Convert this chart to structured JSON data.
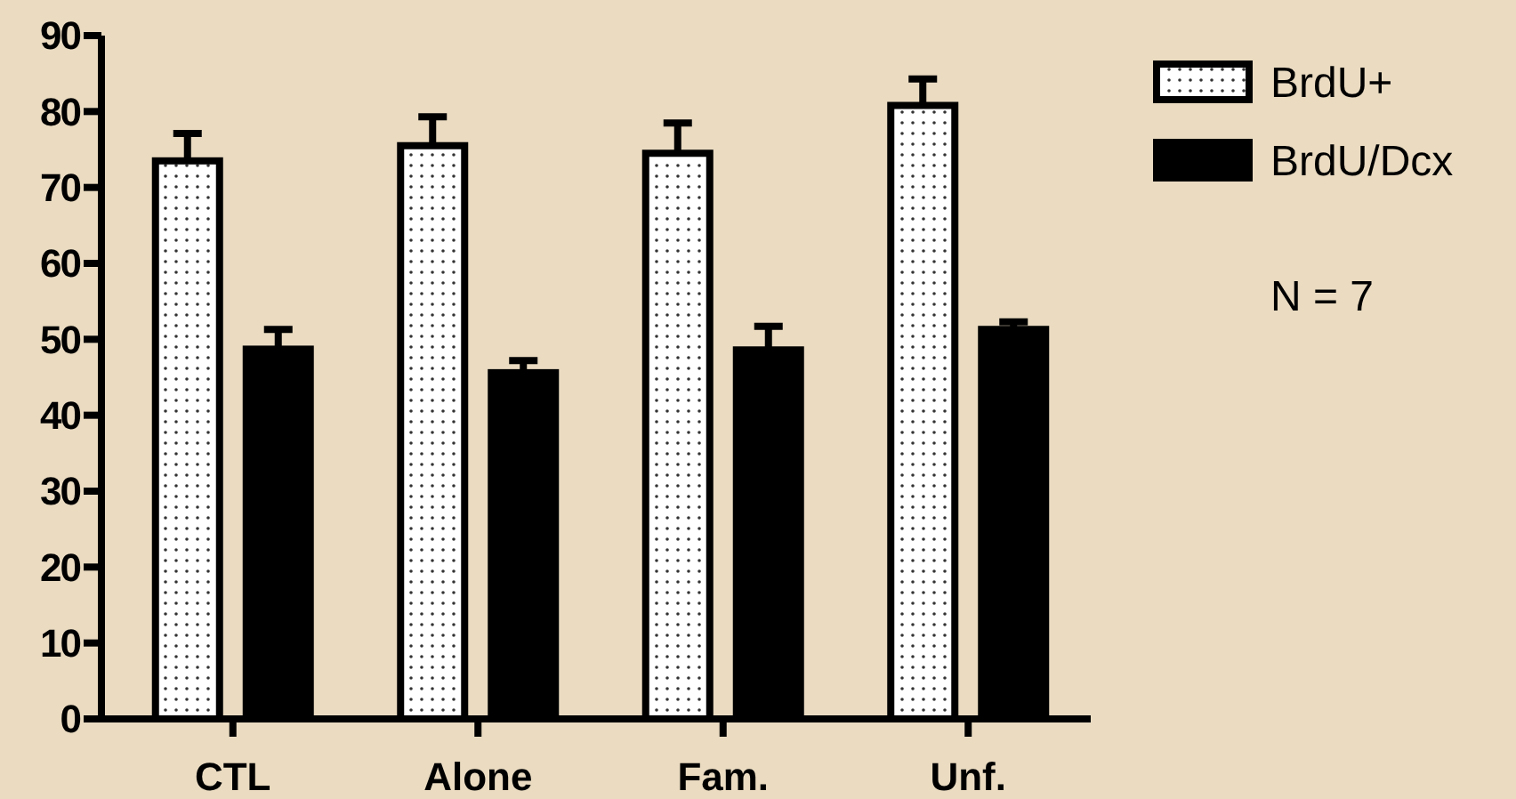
{
  "chart_data": {
    "type": "bar",
    "categories": [
      "CTL",
      "Alone",
      "Fam.",
      "Unf."
    ],
    "series": [
      {
        "name": "BrdU+",
        "color": "#ffffff",
        "values": [
          73.5,
          75.5,
          74.5,
          80.8
        ],
        "errors": [
          3.6,
          3.8,
          4,
          3.5
        ]
      },
      {
        "name": "BrdU/Dcx",
        "color": "#000000",
        "values": [
          48.7,
          45.6,
          48.6,
          51.3
        ],
        "errors": [
          2.6,
          1.6,
          3.1,
          1
        ]
      }
    ],
    "ylim": [
      0,
      90
    ],
    "yticks": [
      0,
      10,
      20,
      30,
      40,
      50,
      60,
      70,
      80,
      90
    ],
    "grid": false,
    "legend": "top right",
    "annotations": [
      "N = 7"
    ]
  }
}
